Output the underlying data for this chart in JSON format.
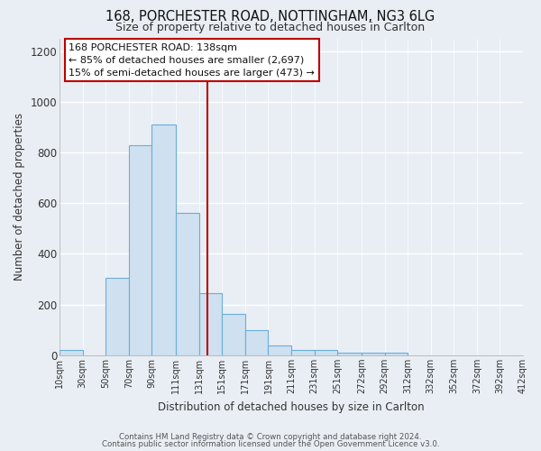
{
  "title1": "168, PORCHESTER ROAD, NOTTINGHAM, NG3 6LG",
  "title2": "Size of property relative to detached houses in Carlton",
  "xlabel": "Distribution of detached houses by size in Carlton",
  "ylabel": "Number of detached properties",
  "bin_edges": [
    10,
    30,
    50,
    70,
    90,
    111,
    131,
    151,
    171,
    191,
    211,
    231,
    251,
    272,
    292,
    312,
    332,
    352,
    372,
    392,
    412
  ],
  "bar_heights": [
    20,
    0,
    305,
    830,
    910,
    560,
    245,
    163,
    100,
    40,
    20,
    20,
    10,
    10,
    10,
    0,
    0,
    0,
    0,
    0
  ],
  "tick_labels": [
    "10sqm",
    "30sqm",
    "50sqm",
    "70sqm",
    "90sqm",
    "111sqm",
    "131sqm",
    "151sqm",
    "171sqm",
    "191sqm",
    "211sqm",
    "231sqm",
    "251sqm",
    "272sqm",
    "292sqm",
    "312sqm",
    "332sqm",
    "352sqm",
    "372sqm",
    "392sqm",
    "412sqm"
  ],
  "tick_positions": [
    10,
    30,
    50,
    70,
    90,
    111,
    131,
    151,
    171,
    191,
    211,
    231,
    251,
    272,
    292,
    312,
    332,
    352,
    372,
    392,
    412
  ],
  "bar_color": "#cfe0f0",
  "bar_edge_color": "#6baed6",
  "bg_color": "#e8eef4",
  "plot_bg_color": "#e8eef4",
  "grid_color": "#ffffff",
  "vline_x": 138,
  "vline_color": "#bb0000",
  "ylim": [
    0,
    1250
  ],
  "yticks": [
    0,
    200,
    400,
    600,
    800,
    1000,
    1200
  ],
  "annotation_title": "168 PORCHESTER ROAD: 138sqm",
  "annotation_line1": "← 85% of detached houses are smaller (2,697)",
  "annotation_line2": "15% of semi-detached houses are larger (473) →",
  "footer1": "Contains HM Land Registry data © Crown copyright and database right 2024.",
  "footer2": "Contains public sector information licensed under the Open Government Licence v3.0."
}
